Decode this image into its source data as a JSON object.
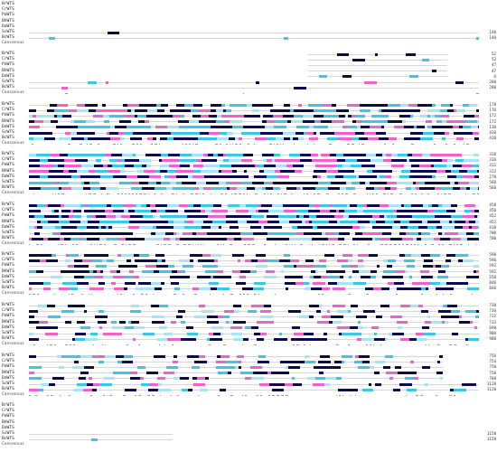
{
  "colors": {
    "identical": "#0b0b4a",
    "high": "#ee63c5",
    "medium": "#3cc7e4",
    "low": "#a4e6f1",
    "plain": "#d7d7d7"
  },
  "blocks": [
    {
      "rows": [
        {
          "name": "BrWTS",
          "end": ""
        },
        {
          "name": "CrWTS",
          "end": ""
        },
        {
          "name": "PaWTS",
          "end": ""
        },
        {
          "name": "BhWTS",
          "end": ""
        },
        {
          "name": "DaWTS",
          "end": ""
        },
        {
          "name": "ScWTS",
          "end": "140"
        },
        {
          "name": "BcWTS",
          "end": "140"
        }
      ],
      "consensus_label": "Consensus"
    },
    {
      "rows": [
        {
          "name": "BrWTS",
          "end": "52"
        },
        {
          "name": "CrWTS",
          "end": "52"
        },
        {
          "name": "PaWTS",
          "end": "47"
        },
        {
          "name": "BhWTS",
          "end": "47"
        },
        {
          "name": "DaWTS",
          "end": "6"
        },
        {
          "name": "ScWTS",
          "end": "280"
        },
        {
          "name": "BcWTS",
          "end": "280"
        }
      ],
      "consensus_label": "Consensus"
    },
    {
      "rows": [
        {
          "name": "BrWTS",
          "end": "178"
        },
        {
          "name": "CrWTS",
          "end": "176"
        },
        {
          "name": "PaWTS",
          "end": "172"
        },
        {
          "name": "BhWTS",
          "end": "172"
        },
        {
          "name": "DaWTS",
          "end": "130"
        },
        {
          "name": "ScWTS",
          "end": "420"
        },
        {
          "name": "BcWTS",
          "end": "420"
        }
      ],
      "consensus_label": "Consensus"
    },
    {
      "rows": [
        {
          "name": "BrWTS",
          "end": "318"
        },
        {
          "name": "CrWTS",
          "end": "316"
        },
        {
          "name": "PaWTS",
          "end": "312"
        },
        {
          "name": "BhWTS",
          "end": "312"
        },
        {
          "name": "DaWTS",
          "end": "270"
        },
        {
          "name": "ScWTS",
          "end": "560"
        },
        {
          "name": "BcWTS",
          "end": "560"
        }
      ],
      "consensus_label": "Consensus"
    },
    {
      "rows": [
        {
          "name": "BrWTS",
          "end": "458"
        },
        {
          "name": "CrWTS",
          "end": "456"
        },
        {
          "name": "PaWTS",
          "end": "452"
        },
        {
          "name": "BhWTS",
          "end": "452"
        },
        {
          "name": "DaWTS",
          "end": "410"
        },
        {
          "name": "ScWTS",
          "end": "700"
        },
        {
          "name": "BcWTS",
          "end": "700"
        }
      ],
      "consensus_label": "Consensus"
    },
    {
      "rows": [
        {
          "name": "BrWTS",
          "end": "598"
        },
        {
          "name": "CrWTS",
          "end": "596"
        },
        {
          "name": "PaWTS",
          "end": "592"
        },
        {
          "name": "BhWTS",
          "end": "592"
        },
        {
          "name": "DaWTS",
          "end": "550"
        },
        {
          "name": "ScWTS",
          "end": "840"
        },
        {
          "name": "BcWTS",
          "end": "840"
        }
      ],
      "consensus_label": "Consensus"
    },
    {
      "rows": [
        {
          "name": "BrWTS",
          "end": "738"
        },
        {
          "name": "CrWTS",
          "end": "736"
        },
        {
          "name": "PaWTS",
          "end": "732"
        },
        {
          "name": "BhWTS",
          "end": "732"
        },
        {
          "name": "DaWTS",
          "end": "690"
        },
        {
          "name": "ScWTS",
          "end": "980"
        },
        {
          "name": "BcWTS",
          "end": "980"
        }
      ],
      "consensus_label": "Consensus"
    },
    {
      "rows": [
        {
          "name": "BrWTS",
          "end": "756"
        },
        {
          "name": "CrWTS",
          "end": "754"
        },
        {
          "name": "PaWTS",
          "end": "750"
        },
        {
          "name": "BhWTS",
          "end": "750"
        },
        {
          "name": "DaWTS",
          "end": "708"
        },
        {
          "name": "ScWTS",
          "end": "1120"
        },
        {
          "name": "BcWTS",
          "end": "1120"
        }
      ],
      "consensus_label": "Consensus"
    },
    {
      "rows": [
        {
          "name": "BrWTS",
          "end": ""
        },
        {
          "name": "CrWTS",
          "end": ""
        },
        {
          "name": "PaWTS",
          "end": ""
        },
        {
          "name": "BhWTS",
          "end": ""
        },
        {
          "name": "DaWTS",
          "end": ""
        },
        {
          "name": "ScWTS",
          "end": "1158"
        },
        {
          "name": "BcWTS",
          "end": "1158"
        }
      ],
      "consensus_label": "Consensus"
    }
  ]
}
